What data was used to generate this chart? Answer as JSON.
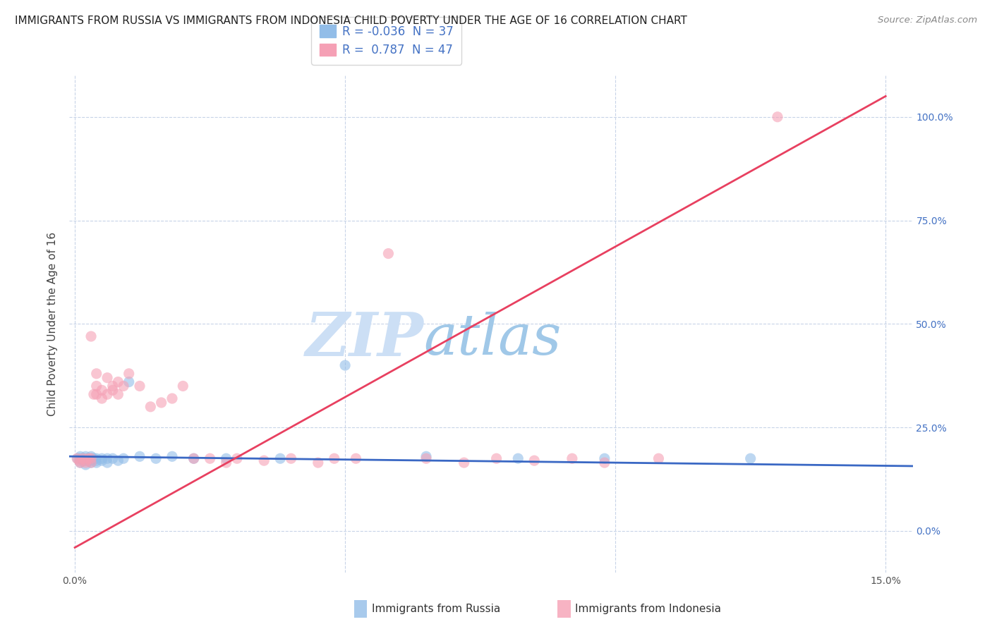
{
  "title": "IMMIGRANTS FROM RUSSIA VS IMMIGRANTS FROM INDONESIA CHILD POVERTY UNDER THE AGE OF 16 CORRELATION CHART",
  "source": "Source: ZipAtlas.com",
  "ylabel": "Child Poverty Under the Age of 16",
  "xlim": [
    -0.001,
    0.155
  ],
  "ylim": [
    -0.1,
    1.1
  ],
  "xticks": [
    0.0,
    0.05,
    0.1,
    0.15
  ],
  "xticklabels": [
    "0.0%",
    "",
    "",
    "15.0%"
  ],
  "yticks": [
    0.0,
    0.25,
    0.5,
    0.75,
    1.0
  ],
  "yticklabels_right": [
    "0.0%",
    "25.0%",
    "50.0%",
    "75.0%",
    "100.0%"
  ],
  "russia_R": -0.036,
  "russia_N": 37,
  "indonesia_R": 0.787,
  "indonesia_N": 47,
  "russia_color": "#92bde8",
  "indonesia_color": "#f5a0b5",
  "russia_line_color": "#3a68c4",
  "indonesia_line_color": "#e84060",
  "watermark_zip": "ZIP",
  "watermark_atlas": "atlas",
  "watermark_color_zip": "#c5d8f0",
  "watermark_color_atlas": "#9dc5e8",
  "legend_label_russia": "Immigrants from Russia",
  "legend_label_indonesia": "Immigrants from Indonesia",
  "russia_x": [
    0.0005,
    0.001,
    0.001,
    0.001,
    0.0015,
    0.002,
    0.002,
    0.002,
    0.002,
    0.0025,
    0.003,
    0.003,
    0.003,
    0.003,
    0.0035,
    0.004,
    0.004,
    0.004,
    0.005,
    0.005,
    0.006,
    0.006,
    0.007,
    0.008,
    0.009,
    0.01,
    0.012,
    0.015,
    0.018,
    0.022,
    0.028,
    0.038,
    0.05,
    0.065,
    0.082,
    0.098,
    0.125
  ],
  "russia_y": [
    0.175,
    0.18,
    0.175,
    0.165,
    0.17,
    0.17,
    0.175,
    0.18,
    0.16,
    0.17,
    0.175,
    0.165,
    0.18,
    0.17,
    0.175,
    0.175,
    0.17,
    0.165,
    0.175,
    0.17,
    0.175,
    0.165,
    0.175,
    0.17,
    0.175,
    0.36,
    0.18,
    0.175,
    0.18,
    0.175,
    0.175,
    0.175,
    0.4,
    0.18,
    0.175,
    0.175,
    0.175
  ],
  "indonesia_x": [
    0.0004,
    0.0008,
    0.001,
    0.0015,
    0.002,
    0.002,
    0.0025,
    0.003,
    0.003,
    0.003,
    0.0035,
    0.004,
    0.004,
    0.004,
    0.005,
    0.005,
    0.006,
    0.006,
    0.007,
    0.007,
    0.008,
    0.008,
    0.009,
    0.01,
    0.012,
    0.014,
    0.016,
    0.018,
    0.02,
    0.022,
    0.025,
    0.028,
    0.03,
    0.035,
    0.04,
    0.045,
    0.048,
    0.052,
    0.058,
    0.065,
    0.072,
    0.078,
    0.085,
    0.092,
    0.098,
    0.108,
    0.13
  ],
  "indonesia_y": [
    0.175,
    0.17,
    0.165,
    0.175,
    0.17,
    0.165,
    0.175,
    0.165,
    0.175,
    0.47,
    0.33,
    0.35,
    0.38,
    0.33,
    0.34,
    0.32,
    0.37,
    0.33,
    0.35,
    0.34,
    0.36,
    0.33,
    0.35,
    0.38,
    0.35,
    0.3,
    0.31,
    0.32,
    0.35,
    0.175,
    0.175,
    0.165,
    0.175,
    0.17,
    0.175,
    0.165,
    0.175,
    0.175,
    0.67,
    0.175,
    0.165,
    0.175,
    0.17,
    0.175,
    0.165,
    0.175,
    1.0
  ],
  "russia_trendline": [
    -0.15,
    0.18
  ],
  "indonesia_trendline_x": [
    0.0,
    0.15
  ],
  "indonesia_trendline_y": [
    -0.04,
    1.05
  ],
  "background_color": "#ffffff",
  "grid_color": "#c8d4e8",
  "title_fontsize": 11,
  "axis_label_fontsize": 11,
  "tick_fontsize": 10,
  "legend_fontsize": 12,
  "marker_size": 120
}
